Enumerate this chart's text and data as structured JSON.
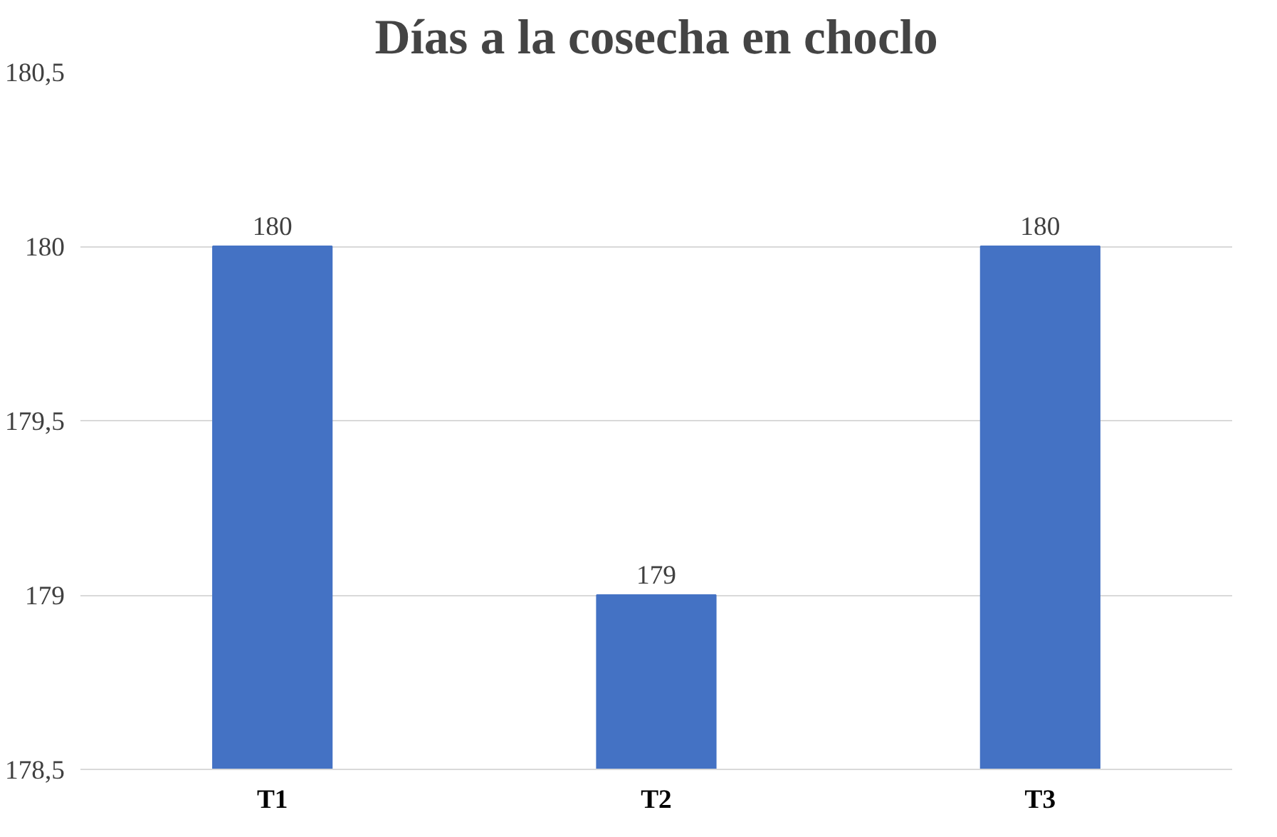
{
  "chart_data": {
    "type": "bar",
    "title": "Días a la cosecha en choclo",
    "categories": [
      "T1",
      "T2",
      "T3"
    ],
    "values": [
      180,
      179,
      180
    ],
    "color": "#4472c4",
    "ylim": [
      178.5,
      180.5
    ],
    "yticks": [
      {
        "value": 178.5,
        "label": "178,5"
      },
      179,
      {
        "value": 179.5,
        "label": "179,5"
      },
      180,
      {
        "value": 180.5,
        "label": "180,5"
      }
    ],
    "grid": "y",
    "data_labels": true
  }
}
